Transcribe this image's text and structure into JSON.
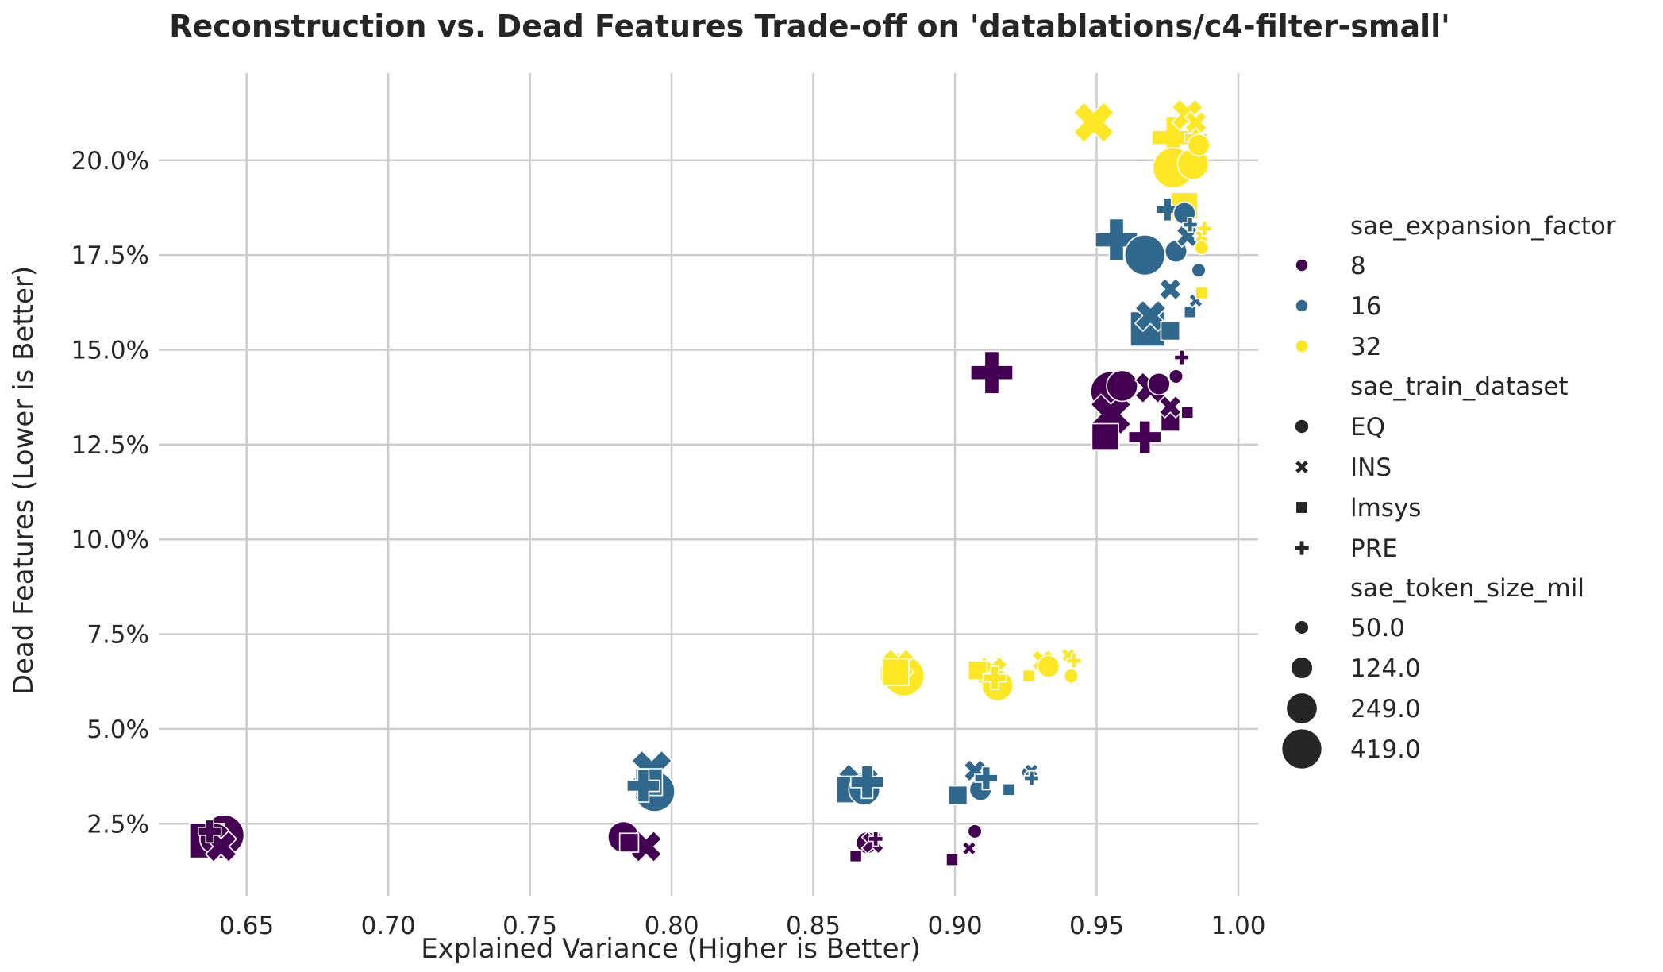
{
  "chart_data": {
    "type": "scatter",
    "title": "Reconstruction vs. Dead Features Trade-off on 'datablations/c4-filter-small'",
    "xlabel": "Explained Variance (Higher is Better)",
    "ylabel": "Dead Features (Lower is Better)",
    "xlim": [
      0.619,
      1.007
    ],
    "ylim": [
      0.6,
      22.3
    ],
    "xticks": [
      0.65,
      0.7,
      0.75,
      0.8,
      0.85,
      0.9,
      0.95,
      1.0
    ],
    "xtick_labels": [
      "0.65",
      "0.70",
      "0.75",
      "0.80",
      "0.85",
      "0.90",
      "0.95",
      "1.00"
    ],
    "yticks": [
      2.5,
      5.0,
      7.5,
      10.0,
      12.5,
      15.0,
      17.5,
      20.0
    ],
    "ytick_labels": [
      "2.5%",
      "5.0%",
      "7.5%",
      "10.0%",
      "12.5%",
      "15.0%",
      "17.5%",
      "20.0%"
    ],
    "grid": true,
    "legend": {
      "placement": "right",
      "hue_title": "sae_expansion_factor",
      "hue_items": [
        {
          "label": "8",
          "color": "#440154"
        },
        {
          "label": "16",
          "color": "#31688e"
        },
        {
          "label": "32",
          "color": "#fde725"
        }
      ],
      "style_title": "sae_train_dataset",
      "style_items": [
        {
          "label": "EQ",
          "marker": "circle"
        },
        {
          "label": "INS",
          "marker": "x"
        },
        {
          "label": "lmsys",
          "marker": "square"
        },
        {
          "label": "PRE",
          "marker": "plus"
        }
      ],
      "size_title": "sae_token_size_mil",
      "size_items": [
        {
          "label": "50.0",
          "value": 50
        },
        {
          "label": "124.0",
          "value": 124
        },
        {
          "label": "249.0",
          "value": 249
        },
        {
          "label": "419.0",
          "value": 419
        }
      ]
    },
    "points": [
      {
        "x": 0.642,
        "y": 2.2,
        "factor": 8,
        "dataset": "EQ",
        "size": 419
      },
      {
        "x": 0.639,
        "y": 2.1,
        "factor": 8,
        "dataset": "EQ",
        "size": 249
      },
      {
        "x": 0.641,
        "y": 1.9,
        "factor": 8,
        "dataset": "INS",
        "size": 249
      },
      {
        "x": 0.636,
        "y": 2.05,
        "factor": 8,
        "dataset": "lmsys",
        "size": 419
      },
      {
        "x": 0.637,
        "y": 2.3,
        "factor": 8,
        "dataset": "PRE",
        "size": 124
      },
      {
        "x": 0.783,
        "y": 2.15,
        "factor": 8,
        "dataset": "EQ",
        "size": 249
      },
      {
        "x": 0.791,
        "y": 1.9,
        "factor": 8,
        "dataset": "INS",
        "size": 249
      },
      {
        "x": 0.785,
        "y": 2.0,
        "factor": 8,
        "dataset": "lmsys",
        "size": 124
      },
      {
        "x": 0.865,
        "y": 1.65,
        "factor": 8,
        "dataset": "lmsys",
        "size": 50
      },
      {
        "x": 0.869,
        "y": 2.0,
        "factor": 8,
        "dataset": "EQ",
        "size": 124
      },
      {
        "x": 0.871,
        "y": 2.0,
        "factor": 8,
        "dataset": "INS",
        "size": 124
      },
      {
        "x": 0.872,
        "y": 2.1,
        "factor": 8,
        "dataset": "PRE",
        "size": 50
      },
      {
        "x": 0.899,
        "y": 1.55,
        "factor": 8,
        "dataset": "lmsys",
        "size": 50
      },
      {
        "x": 0.905,
        "y": 1.85,
        "factor": 8,
        "dataset": "INS",
        "size": 50
      },
      {
        "x": 0.907,
        "y": 2.3,
        "factor": 8,
        "dataset": "EQ",
        "size": 50
      },
      {
        "x": 0.913,
        "y": 14.4,
        "factor": 8,
        "dataset": "PRE",
        "size": 419
      },
      {
        "x": 0.953,
        "y": 12.7,
        "factor": 8,
        "dataset": "lmsys",
        "size": 249
      },
      {
        "x": 0.955,
        "y": 13.9,
        "factor": 8,
        "dataset": "EQ",
        "size": 419
      },
      {
        "x": 0.955,
        "y": 13.3,
        "factor": 8,
        "dataset": "INS",
        "size": 419
      },
      {
        "x": 0.959,
        "y": 14.05,
        "factor": 8,
        "dataset": "EQ",
        "size": 249
      },
      {
        "x": 0.967,
        "y": 12.7,
        "factor": 8,
        "dataset": "PRE",
        "size": 249
      },
      {
        "x": 0.969,
        "y": 14.0,
        "factor": 8,
        "dataset": "INS",
        "size": 249
      },
      {
        "x": 0.972,
        "y": 14.1,
        "factor": 8,
        "dataset": "EQ",
        "size": 124
      },
      {
        "x": 0.976,
        "y": 13.1,
        "factor": 8,
        "dataset": "lmsys",
        "size": 124
      },
      {
        "x": 0.976,
        "y": 13.5,
        "factor": 8,
        "dataset": "INS",
        "size": 124
      },
      {
        "x": 0.978,
        "y": 14.3,
        "factor": 8,
        "dataset": "EQ",
        "size": 50
      },
      {
        "x": 0.98,
        "y": 14.8,
        "factor": 8,
        "dataset": "PRE",
        "size": 50
      },
      {
        "x": 0.982,
        "y": 13.35,
        "factor": 8,
        "dataset": "lmsys",
        "size": 50
      },
      {
        "x": 0.793,
        "y": 3.9,
        "factor": 16,
        "dataset": "INS",
        "size": 419
      },
      {
        "x": 0.792,
        "y": 3.6,
        "factor": 16,
        "dataset": "lmsys",
        "size": 249
      },
      {
        "x": 0.794,
        "y": 3.35,
        "factor": 16,
        "dataset": "EQ",
        "size": 419
      },
      {
        "x": 0.79,
        "y": 3.5,
        "factor": 16,
        "dataset": "PRE",
        "size": 249
      },
      {
        "x": 0.863,
        "y": 3.4,
        "factor": 16,
        "dataset": "lmsys",
        "size": 249
      },
      {
        "x": 0.866,
        "y": 3.55,
        "factor": 16,
        "dataset": "INS",
        "size": 419
      },
      {
        "x": 0.868,
        "y": 3.4,
        "factor": 16,
        "dataset": "EQ",
        "size": 249
      },
      {
        "x": 0.869,
        "y": 3.6,
        "factor": 16,
        "dataset": "PRE",
        "size": 249
      },
      {
        "x": 0.901,
        "y": 3.25,
        "factor": 16,
        "dataset": "lmsys",
        "size": 124
      },
      {
        "x": 0.907,
        "y": 3.9,
        "factor": 16,
        "dataset": "INS",
        "size": 124
      },
      {
        "x": 0.909,
        "y": 3.4,
        "factor": 16,
        "dataset": "EQ",
        "size": 124
      },
      {
        "x": 0.911,
        "y": 3.7,
        "factor": 16,
        "dataset": "PRE",
        "size": 124
      },
      {
        "x": 0.919,
        "y": 3.4,
        "factor": 16,
        "dataset": "lmsys",
        "size": 50
      },
      {
        "x": 0.926,
        "y": 3.85,
        "factor": 16,
        "dataset": "EQ",
        "size": 50
      },
      {
        "x": 0.927,
        "y": 3.9,
        "factor": 16,
        "dataset": "INS",
        "size": 50
      },
      {
        "x": 0.927,
        "y": 3.7,
        "factor": 16,
        "dataset": "PRE",
        "size": 50
      },
      {
        "x": 0.957,
        "y": 17.9,
        "factor": 16,
        "dataset": "PRE",
        "size": 419
      },
      {
        "x": 0.967,
        "y": 17.5,
        "factor": 16,
        "dataset": "EQ",
        "size": 419
      },
      {
        "x": 0.968,
        "y": 15.55,
        "factor": 16,
        "dataset": "lmsys",
        "size": 419
      },
      {
        "x": 0.969,
        "y": 15.9,
        "factor": 16,
        "dataset": "INS",
        "size": 249
      },
      {
        "x": 0.975,
        "y": 18.7,
        "factor": 16,
        "dataset": "PRE",
        "size": 124
      },
      {
        "x": 0.976,
        "y": 16.6,
        "factor": 16,
        "dataset": "INS",
        "size": 124
      },
      {
        "x": 0.976,
        "y": 15.5,
        "factor": 16,
        "dataset": "lmsys",
        "size": 124
      },
      {
        "x": 0.978,
        "y": 17.6,
        "factor": 16,
        "dataset": "EQ",
        "size": 124
      },
      {
        "x": 0.981,
        "y": 18.6,
        "factor": 16,
        "dataset": "EQ",
        "size": 124
      },
      {
        "x": 0.982,
        "y": 18.0,
        "factor": 16,
        "dataset": "INS",
        "size": 124
      },
      {
        "x": 0.983,
        "y": 18.3,
        "factor": 16,
        "dataset": "PRE",
        "size": 50
      },
      {
        "x": 0.983,
        "y": 16.0,
        "factor": 16,
        "dataset": "lmsys",
        "size": 50
      },
      {
        "x": 0.985,
        "y": 16.3,
        "factor": 16,
        "dataset": "INS",
        "size": 50
      },
      {
        "x": 0.986,
        "y": 17.1,
        "factor": 16,
        "dataset": "EQ",
        "size": 50
      },
      {
        "x": 0.88,
        "y": 6.7,
        "factor": 32,
        "dataset": "INS",
        "size": 249
      },
      {
        "x": 0.879,
        "y": 6.5,
        "factor": 32,
        "dataset": "lmsys",
        "size": 249
      },
      {
        "x": 0.881,
        "y": 6.45,
        "factor": 32,
        "dataset": "PRE",
        "size": 419
      },
      {
        "x": 0.882,
        "y": 6.4,
        "factor": 32,
        "dataset": "EQ",
        "size": 419
      },
      {
        "x": 0.908,
        "y": 6.55,
        "factor": 32,
        "dataset": "lmsys",
        "size": 124
      },
      {
        "x": 0.913,
        "y": 6.5,
        "factor": 32,
        "dataset": "INS",
        "size": 249
      },
      {
        "x": 0.914,
        "y": 6.35,
        "factor": 32,
        "dataset": "PRE",
        "size": 124
      },
      {
        "x": 0.915,
        "y": 6.15,
        "factor": 32,
        "dataset": "EQ",
        "size": 249
      },
      {
        "x": 0.926,
        "y": 6.4,
        "factor": 32,
        "dataset": "lmsys",
        "size": 50
      },
      {
        "x": 0.931,
        "y": 6.8,
        "factor": 32,
        "dataset": "INS",
        "size": 124
      },
      {
        "x": 0.933,
        "y": 6.65,
        "factor": 32,
        "dataset": "EQ",
        "size": 124
      },
      {
        "x": 0.94,
        "y": 6.95,
        "factor": 32,
        "dataset": "INS",
        "size": 50
      },
      {
        "x": 0.941,
        "y": 6.4,
        "factor": 32,
        "dataset": "EQ",
        "size": 50
      },
      {
        "x": 0.942,
        "y": 6.8,
        "factor": 32,
        "dataset": "PRE",
        "size": 50
      },
      {
        "x": 0.949,
        "y": 21.0,
        "factor": 32,
        "dataset": "INS",
        "size": 419
      },
      {
        "x": 0.977,
        "y": 20.6,
        "factor": 32,
        "dataset": "PRE",
        "size": 419
      },
      {
        "x": 0.977,
        "y": 19.8,
        "factor": 32,
        "dataset": "EQ",
        "size": 419
      },
      {
        "x": 0.982,
        "y": 21.2,
        "factor": 32,
        "dataset": "INS",
        "size": 249
      },
      {
        "x": 0.984,
        "y": 19.9,
        "factor": 32,
        "dataset": "EQ",
        "size": 249
      },
      {
        "x": 0.981,
        "y": 18.8,
        "factor": 32,
        "dataset": "lmsys",
        "size": 249
      },
      {
        "x": 0.985,
        "y": 20.6,
        "factor": 32,
        "dataset": "PRE",
        "size": 124
      },
      {
        "x": 0.986,
        "y": 20.4,
        "factor": 32,
        "dataset": "EQ",
        "size": 124
      },
      {
        "x": 0.985,
        "y": 21.0,
        "factor": 32,
        "dataset": "INS",
        "size": 124
      },
      {
        "x": 0.987,
        "y": 18.0,
        "factor": 32,
        "dataset": "INS",
        "size": 50
      },
      {
        "x": 0.988,
        "y": 18.2,
        "factor": 32,
        "dataset": "PRE",
        "size": 50
      },
      {
        "x": 0.987,
        "y": 17.7,
        "factor": 32,
        "dataset": "EQ",
        "size": 50
      },
      {
        "x": 0.987,
        "y": 16.5,
        "factor": 32,
        "dataset": "lmsys",
        "size": 50
      }
    ]
  }
}
